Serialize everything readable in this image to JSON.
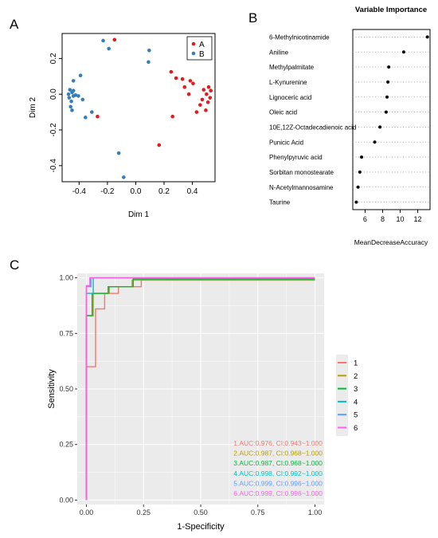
{
  "panels": {
    "a": "A",
    "b": "B",
    "c": "C"
  },
  "chart_data": [
    {
      "type": "scatter",
      "panel": "A",
      "xlabel": "Dim 1",
      "ylabel": "Dim 2",
      "xlim": [
        -0.52,
        0.56
      ],
      "ylim": [
        -0.49,
        0.34
      ],
      "xticks": [
        -0.4,
        -0.2,
        0.0,
        0.2,
        0.4
      ],
      "xtick_labels": [
        "-0.4",
        "-0.2",
        "0.0",
        "0.2",
        "0.4"
      ],
      "yticks": [
        -0.4,
        -0.2,
        0.0,
        0.2
      ],
      "ytick_labels": [
        "-0.4",
        "-0.2",
        "0.0",
        "0.2"
      ],
      "legend_position": "top-right",
      "series": [
        {
          "name": "A",
          "color": "#E41A1C",
          "points": [
            [
              -0.15,
              0.305
            ],
            [
              -0.27,
              -0.125
            ],
            [
              0.165,
              -0.285
            ],
            [
              0.26,
              -0.125
            ],
            [
              0.25,
              0.125
            ],
            [
              0.285,
              0.09
            ],
            [
              0.33,
              0.085
            ],
            [
              0.345,
              0.04
            ],
            [
              0.375,
              0.0
            ],
            [
              0.385,
              0.075
            ],
            [
              0.405,
              0.06
            ],
            [
              0.43,
              -0.1
            ],
            [
              0.455,
              -0.06
            ],
            [
              0.47,
              -0.03
            ],
            [
              0.48,
              0.025
            ],
            [
              0.495,
              -0.09
            ],
            [
              0.5,
              0.0
            ],
            [
              0.51,
              -0.045
            ],
            [
              0.515,
              0.04
            ],
            [
              0.525,
              -0.02
            ],
            [
              0.53,
              0.02
            ]
          ]
        },
        {
          "name": "B",
          "color": "#377EB8",
          "points": [
            [
              -0.23,
              0.3
            ],
            [
              -0.19,
              0.255
            ],
            [
              0.095,
              0.245
            ],
            [
              0.09,
              0.18
            ],
            [
              -0.39,
              0.105
            ],
            [
              -0.44,
              0.075
            ],
            [
              -0.465,
              0.025
            ],
            [
              -0.475,
              0.0
            ],
            [
              -0.47,
              -0.02
            ],
            [
              -0.455,
              -0.04
            ],
            [
              -0.46,
              -0.07
            ],
            [
              -0.45,
              -0.09
            ],
            [
              -0.44,
              0.02
            ],
            [
              -0.44,
              -0.01
            ],
            [
              -0.45,
              0.01
            ],
            [
              -0.425,
              -0.005
            ],
            [
              -0.405,
              -0.01
            ],
            [
              -0.375,
              -0.03
            ],
            [
              -0.31,
              -0.1
            ],
            [
              -0.355,
              -0.13
            ],
            [
              -0.12,
              -0.33
            ],
            [
              -0.085,
              -0.465
            ]
          ]
        }
      ]
    },
    {
      "type": "dot",
      "panel": "B",
      "title": "Variable Importance",
      "xlabel": "MeanDecreaseAccuracy",
      "xlim": [
        4.6,
        13.4
      ],
      "xticks": [
        6,
        8,
        10,
        12
      ],
      "xtick_labels": [
        "6",
        "8",
        "10",
        "12"
      ],
      "categories": [
        "6-Methylnicotinamide",
        "Aniline",
        "Methylpalmitate",
        "L-Kynurenine",
        "Lignoceric acid",
        "Oleic acid",
        "10E,12Z-Octadecadienoic acid",
        "Punicic Acid",
        "Phenylpyruvic acid",
        "Sorbitan monostearate",
        "N-Acetylmannosamine",
        "Taurine"
      ],
      "values": [
        13.1,
        10.4,
        8.7,
        8.6,
        8.5,
        8.4,
        7.7,
        7.1,
        5.6,
        5.4,
        5.2,
        5.0
      ]
    },
    {
      "type": "line",
      "panel": "C",
      "xlabel": "1-Specificity",
      "ylabel": "Sensitivity",
      "xlim": [
        -0.04,
        1.04
      ],
      "ylim": [
        -0.02,
        1.02
      ],
      "xticks": [
        0,
        0.25,
        0.5,
        0.75,
        1
      ],
      "xtick_labels": [
        "0.00",
        "0.25",
        "0.50",
        "0.75",
        "1.00"
      ],
      "yticks": [
        0,
        0.25,
        0.5,
        0.75,
        1
      ],
      "ytick_labels": [
        "0.00",
        "0.25",
        "0.50",
        "0.75",
        "1.00"
      ],
      "legend_position": "right",
      "series": [
        {
          "name": "1",
          "color": "#F8766D",
          "auc_label": "1.AUC:0.976, CI:0.943~1.000",
          "points": [
            [
              0,
              0
            ],
            [
              0,
              0.6
            ],
            [
              0.04,
              0.6
            ],
            [
              0.04,
              0.86
            ],
            [
              0.08,
              0.86
            ],
            [
              0.08,
              0.93
            ],
            [
              0.14,
              0.93
            ],
            [
              0.14,
              0.96
            ],
            [
              0.24,
              0.96
            ],
            [
              0.24,
              0.99
            ],
            [
              1,
              0.99
            ]
          ]
        },
        {
          "name": "2",
          "color": "#B79F00",
          "auc_label": "2.AUC:0.987, CI:0.968~1.000",
          "points": [
            [
              0,
              0
            ],
            [
              0,
              0.83
            ],
            [
              0.03,
              0.83
            ],
            [
              0.03,
              0.93
            ],
            [
              0.1,
              0.93
            ],
            [
              0.1,
              0.96
            ],
            [
              0.2,
              0.96
            ],
            [
              0.2,
              0.99
            ],
            [
              1,
              0.99
            ]
          ]
        },
        {
          "name": "3",
          "color": "#00BA38",
          "auc_label": "3.AUC:0.987, CI:0.968~1.000",
          "points": [
            [
              0,
              0
            ],
            [
              0,
              0.83
            ],
            [
              0.025,
              0.83
            ],
            [
              0.025,
              0.93
            ],
            [
              0.095,
              0.93
            ],
            [
              0.095,
              0.96
            ],
            [
              0.205,
              0.96
            ],
            [
              0.205,
              0.995
            ],
            [
              1,
              0.995
            ]
          ]
        },
        {
          "name": "4",
          "color": "#00BFC4",
          "auc_label": "4.AUC:0.998, CI:0.992~1.000",
          "points": [
            [
              0,
              0
            ],
            [
              0,
              0.93
            ],
            [
              0.03,
              0.93
            ],
            [
              0.03,
              1.0
            ],
            [
              1,
              1.0
            ]
          ]
        },
        {
          "name": "5",
          "color": "#619CFF",
          "auc_label": "5.AUC:0.999, CI:0.996~1.000",
          "points": [
            [
              0,
              0
            ],
            [
              0,
              0.96
            ],
            [
              0.02,
              0.96
            ],
            [
              0.02,
              1.0
            ],
            [
              1,
              1.0
            ]
          ]
        },
        {
          "name": "6",
          "color": "#F564E3",
          "auc_label": "6.AUC:0.999, CI:0.996~1.000",
          "points": [
            [
              0,
              0
            ],
            [
              0,
              0.965
            ],
            [
              0.015,
              0.965
            ],
            [
              0.015,
              1.0
            ],
            [
              1,
              1.0
            ]
          ]
        }
      ]
    }
  ]
}
